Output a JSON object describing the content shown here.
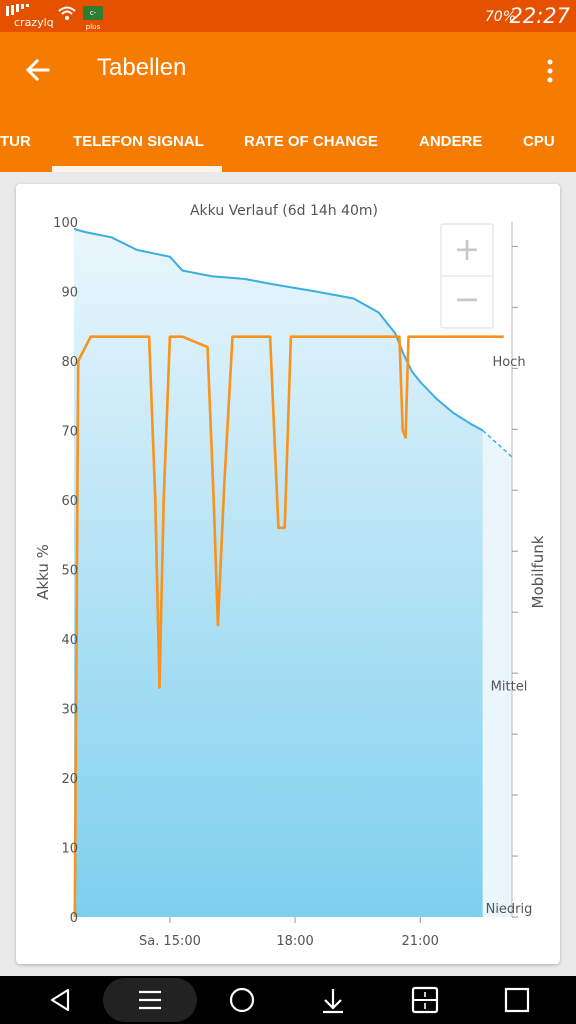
{
  "status_bar": {
    "carrier": "crazylq",
    "badge": "c-plus",
    "battery": "70%",
    "time": "22:27",
    "icons": [
      "signal-bars-icon",
      "wifi-icon",
      "badge-icon"
    ]
  },
  "app_bar": {
    "title": "Tabellen",
    "back_icon": "arrow-left-icon",
    "menu_icon": "more-vert-icon"
  },
  "tabs": [
    {
      "label": "TUR"
    },
    {
      "label": "TELEFON SIGNAL",
      "selected": true
    },
    {
      "label": "RATE OF CHANGE"
    },
    {
      "label": "ANDERE"
    },
    {
      "label": "CPU"
    }
  ],
  "zoom": {
    "in_label": "+",
    "out_label": "−"
  },
  "colors": {
    "accent": "#f57c00",
    "status": "#e65100",
    "battery_line": "#3aaee0",
    "signal_line": "#f7931e"
  },
  "chart_data": {
    "type": "area",
    "title": "Akku Verlauf (6d 14h 40m)",
    "ylabel_left": "Akku %",
    "ylabel_right": "Mobilfunk",
    "ylim": [
      0,
      100
    ],
    "y_ticks": [
      "0",
      "10",
      "20",
      "30",
      "40",
      "50",
      "60",
      "70",
      "80",
      "90",
      "100"
    ],
    "right_ticks": [
      "Niedrig",
      "Mittel",
      "Hoch"
    ],
    "x_ticks": [
      {
        "label": "Sa. 15:00",
        "t": 15.0
      },
      {
        "label": "18:00",
        "t": 18.0
      },
      {
        "label": "21:00",
        "t": 21.0
      }
    ],
    "xlim": [
      12.7,
      23.2
    ],
    "series": [
      {
        "kind": "battery",
        "x": [
          12.7,
          13.0,
          13.6,
          14.2,
          14.6,
          15.0,
          15.3,
          16.0,
          16.8,
          17.5,
          18.5,
          19.4,
          20.0,
          20.4,
          20.6,
          20.8,
          21.0,
          21.4,
          21.8,
          22.2,
          22.5
        ],
        "y": [
          99.0,
          98.5,
          97.8,
          96.0,
          95.5,
          95.0,
          93.0,
          92.2,
          91.8,
          91.0,
          90.0,
          89.0,
          87.0,
          84.0,
          81.0,
          78.5,
          77.0,
          74.5,
          72.5,
          71.0,
          70.0
        ],
        "projection_x": [
          22.5,
          23.2
        ],
        "projection_y": [
          70.0,
          66.2
        ]
      },
      {
        "kind": "signal",
        "x": [
          12.72,
          12.8,
          13.1,
          14.5,
          14.65,
          14.75,
          14.85,
          15.0,
          15.3,
          15.9,
          16.05,
          16.15,
          16.3,
          16.5,
          16.9,
          17.4,
          17.6,
          17.75,
          17.9,
          18.1,
          20.5,
          20.58,
          20.65,
          20.72,
          20.8,
          23.0
        ],
        "y": [
          0,
          80,
          83.5,
          83.5,
          60,
          33,
          60,
          83.5,
          83.5,
          82,
          60,
          42,
          62,
          83.5,
          83.5,
          83.5,
          56,
          56,
          83.5,
          83.5,
          83.5,
          70,
          69,
          83.5,
          83.5,
          83.5
        ]
      }
    ]
  }
}
